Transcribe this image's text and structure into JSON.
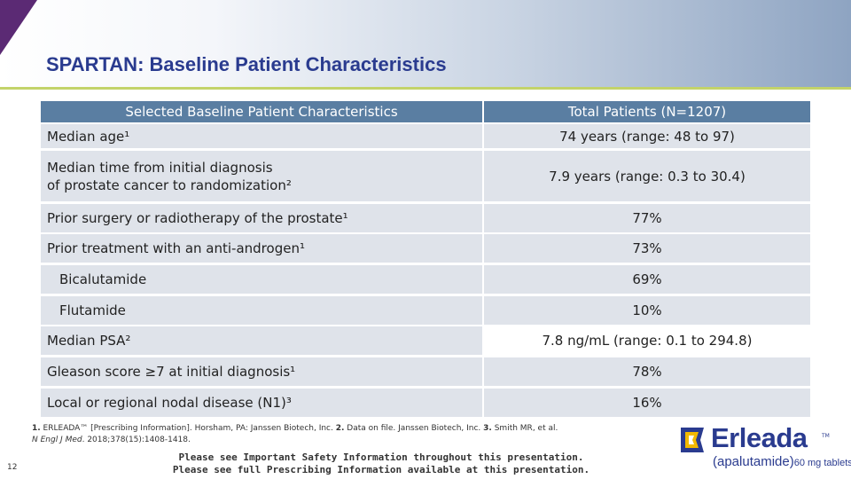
{
  "slide": {
    "title": "SPARTAN: Baseline Patient Characteristics",
    "page_number": "12"
  },
  "table": {
    "header": [
      "Selected Baseline Patient Characteristics",
      "Total Patients (N=1207)"
    ],
    "rows": [
      {
        "label": "Median age¹",
        "value": "74 years (range: 48 to 97)"
      },
      {
        "label_line1": "Median time from initial diagnosis",
        "label_line2": "of prostate cancer to randomization²",
        "value": "7.9 years (range: 0.3 to 30.4)"
      },
      {
        "label": "Prior surgery or radiotherapy of the prostate¹",
        "value": "77%"
      },
      {
        "label": "Prior treatment with an anti-androgen¹",
        "value": "73%"
      },
      {
        "label": "Bicalutamide",
        "value": "69%"
      },
      {
        "label": "Flutamide",
        "value": "10%"
      },
      {
        "label": "Median PSA²",
        "value": "7.8 ng/mL (range: 0.1 to 294.8)"
      },
      {
        "label": "Gleason score ≥7 at initial diagnosis¹",
        "value": "78%"
      },
      {
        "label": "Local or regional nodal disease (N1)³",
        "value": "16%"
      }
    ]
  },
  "references": {
    "r1_num": "1.",
    "r1": " ERLEADA™ [Prescribing Information]. Horsham, PA: Janssen Biotech, Inc.",
    "r2_num": "2.",
    "r2": " Data on file. Janssen Biotech, Inc.",
    "r3_num": "3.",
    "r3a": " Smith MR, et al.",
    "r3_journal": "N Engl J Med",
    "r3b": ". 2018;378(15):1408-1418."
  },
  "isi": {
    "line1": "Please see Important Safety Information throughout this presentation.",
    "line2": "Please see full Prescribing Information available at this presentation."
  },
  "logo": {
    "brand": "Erleada",
    "tm": "TM",
    "generic": "(apalutamide)",
    "dose": "60 mg tablets"
  },
  "colors": {
    "title": "#2a3b8f",
    "header_bg": "#5a7ea2",
    "row_shade": "#dfe3ea",
    "accent_rule": "#c3d36a",
    "wedge": "#5b2a74"
  }
}
